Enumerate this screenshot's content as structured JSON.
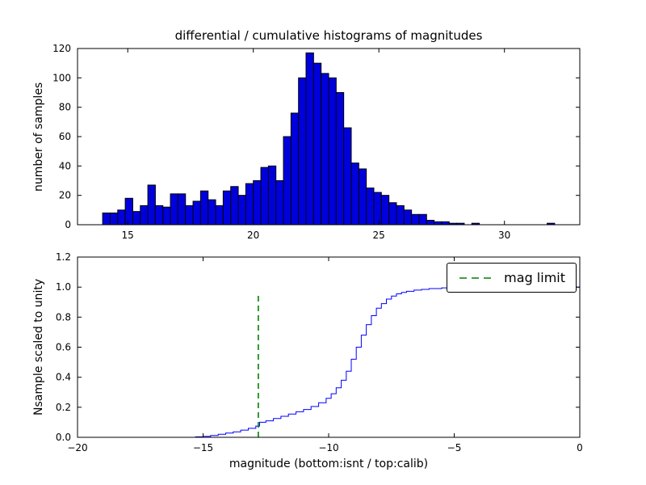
{
  "figure": {
    "title": "differential / cumulative histograms of magnitudes",
    "xlabel": "magnitude (bottom:isnt / top:calib)"
  },
  "chart_data": [
    {
      "type": "bar",
      "title": "differential / cumulative histograms of magnitudes",
      "ylabel": "number of samples",
      "xlim": [
        13,
        33
      ],
      "ylim": [
        0,
        120
      ],
      "xticks": [
        15,
        20,
        25,
        30
      ],
      "xtick_labels": [
        "15",
        "20",
        "25",
        "30"
      ],
      "yticks": [
        0,
        20,
        40,
        60,
        80,
        100,
        120
      ],
      "ytick_labels": [
        "0",
        "20",
        "40",
        "60",
        "80",
        "100",
        "120"
      ],
      "bin_start": 14.0,
      "bin_width": 0.3,
      "counts": [
        8,
        8,
        10,
        18,
        9,
        13,
        27,
        13,
        12,
        21,
        21,
        13,
        16,
        23,
        17,
        13,
        23,
        26,
        20,
        28,
        30,
        39,
        40,
        30,
        60,
        76,
        100,
        117,
        110,
        103,
        100,
        90,
        66,
        42,
        38,
        25,
        22,
        20,
        15,
        13,
        10,
        7,
        7,
        3,
        2,
        2,
        1,
        1,
        0,
        1,
        0,
        0,
        0,
        0,
        0,
        0,
        0,
        0,
        0,
        1
      ],
      "bar_color": "#0000dd",
      "bar_edge": "#000000",
      "grid": false
    },
    {
      "type": "line",
      "step": true,
      "ylabel": "Nsample scaled to unity",
      "xlabel": "magnitude (bottom:isnt / top:calib)",
      "xlim": [
        -20,
        0
      ],
      "ylim": [
        0,
        1.2
      ],
      "xticks": [
        -20,
        -15,
        -10,
        -5,
        0
      ],
      "xtick_labels": [
        "−20",
        "−15",
        "−10",
        "−5",
        "0"
      ],
      "yticks": [
        0.0,
        0.2,
        0.4,
        0.6,
        0.8,
        1.0,
        1.2
      ],
      "ytick_labels": [
        "0.0",
        "0.2",
        "0.4",
        "0.6",
        "0.8",
        "1.0",
        "1.2"
      ],
      "line_color": "#0000ff",
      "points": [
        [
          -20,
          0
        ],
        [
          -15.6,
          0
        ],
        [
          -15.3,
          0.003
        ],
        [
          -15.0,
          0.006
        ],
        [
          -14.7,
          0.012
        ],
        [
          -14.4,
          0.02
        ],
        [
          -14.1,
          0.028
        ],
        [
          -13.8,
          0.036
        ],
        [
          -13.5,
          0.048
        ],
        [
          -13.2,
          0.06
        ],
        [
          -12.9,
          0.075
        ],
        [
          -12.75,
          0.1
        ],
        [
          -12.5,
          0.11
        ],
        [
          -12.2,
          0.125
        ],
        [
          -11.9,
          0.14
        ],
        [
          -11.6,
          0.155
        ],
        [
          -11.3,
          0.17
        ],
        [
          -11.0,
          0.185
        ],
        [
          -10.7,
          0.205
        ],
        [
          -10.4,
          0.23
        ],
        [
          -10.1,
          0.26
        ],
        [
          -9.9,
          0.29
        ],
        [
          -9.7,
          0.33
        ],
        [
          -9.5,
          0.38
        ],
        [
          -9.3,
          0.44
        ],
        [
          -9.1,
          0.52
        ],
        [
          -8.9,
          0.6
        ],
        [
          -8.7,
          0.68
        ],
        [
          -8.5,
          0.75
        ],
        [
          -8.3,
          0.81
        ],
        [
          -8.1,
          0.86
        ],
        [
          -7.9,
          0.89
        ],
        [
          -7.7,
          0.92
        ],
        [
          -7.5,
          0.94
        ],
        [
          -7.3,
          0.955
        ],
        [
          -7.1,
          0.965
        ],
        [
          -6.9,
          0.972
        ],
        [
          -6.6,
          0.98
        ],
        [
          -6.3,
          0.985
        ],
        [
          -6.0,
          0.99
        ],
        [
          -5.5,
          0.995
        ],
        [
          -5.0,
          0.997
        ],
        [
          -4.5,
          0.998
        ],
        [
          -4.0,
          0.999
        ],
        [
          -3.0,
          0.9995
        ],
        [
          -1.5,
          1.0
        ],
        [
          0,
          1.0
        ]
      ],
      "vline": {
        "x": -12.8,
        "y0": 0,
        "y1": 0.95,
        "color": "#008000",
        "style": "dashed",
        "label": "mag limit"
      },
      "legend": {
        "label": "mag limit",
        "position": "upper right"
      },
      "grid": false
    }
  ]
}
